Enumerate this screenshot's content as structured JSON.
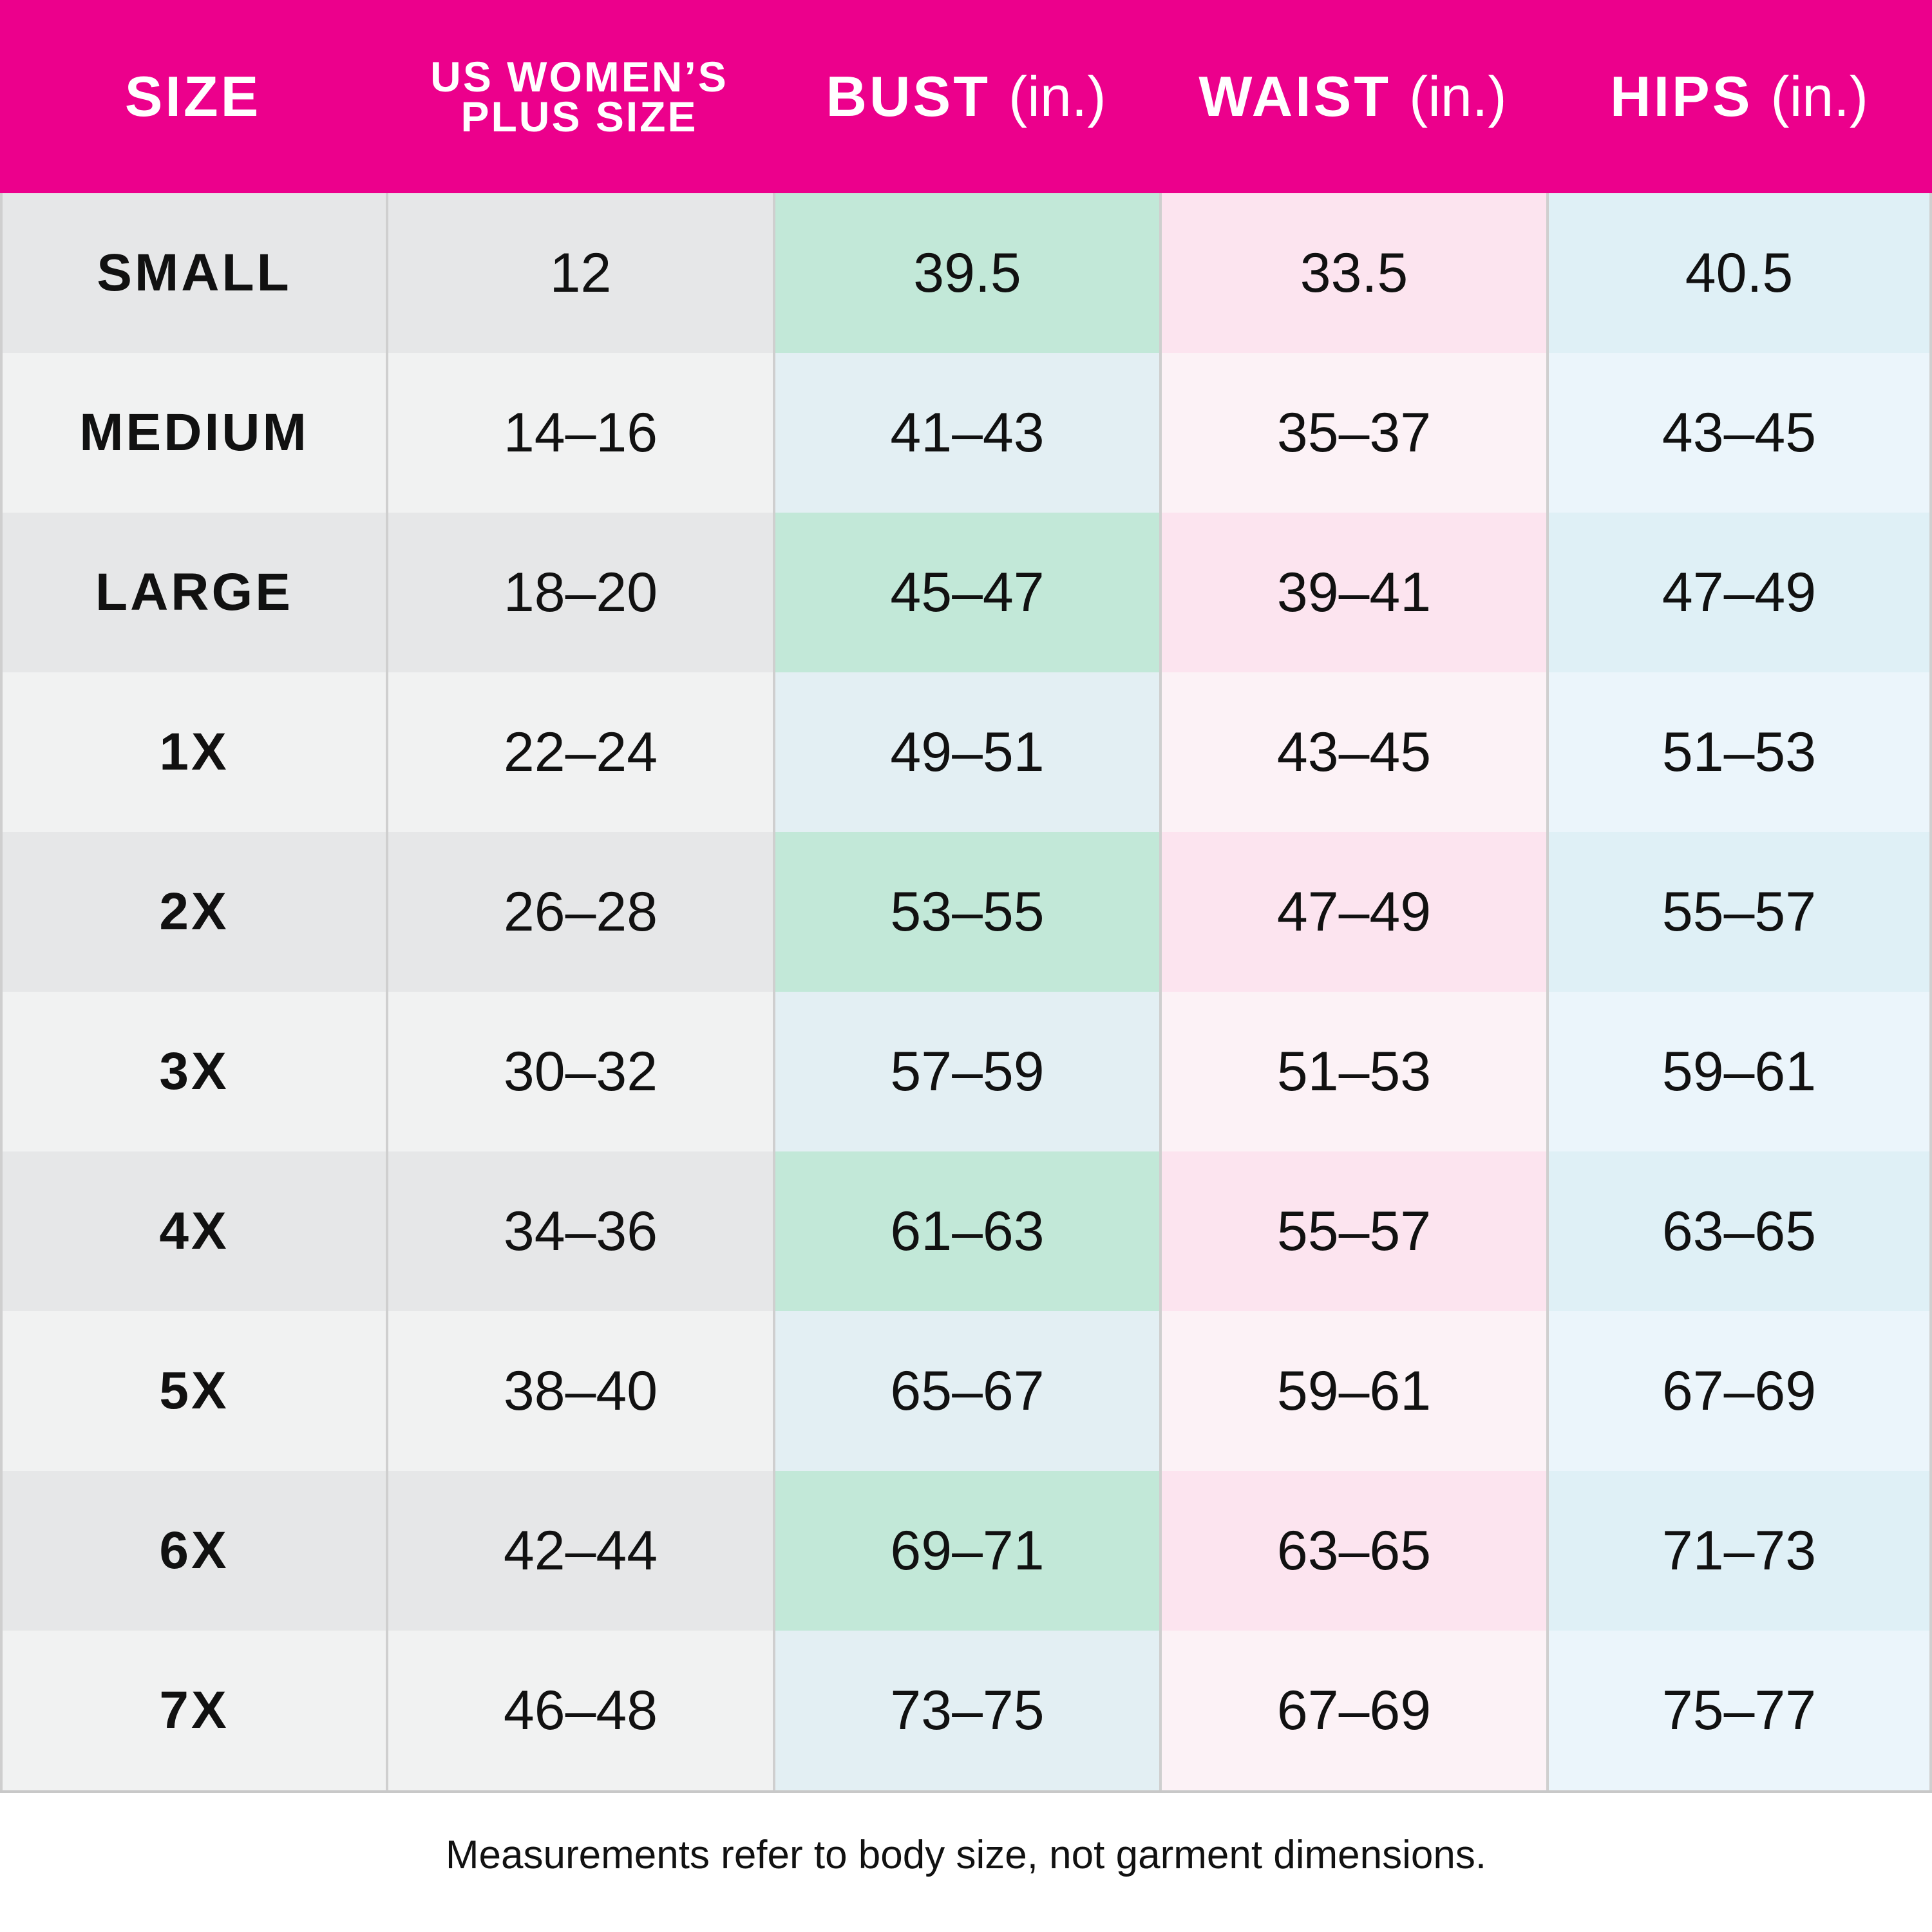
{
  "header": [
    {
      "label": "SIZE"
    },
    {
      "lines": [
        "US WOMEN’S",
        "PLUS SIZE"
      ]
    },
    {
      "label": "BUST",
      "unit": "(in.)"
    },
    {
      "label": "WAIST",
      "unit": "(in.)"
    },
    {
      "label": "HIPS",
      "unit": "(in.)"
    }
  ],
  "table": {
    "rows": [
      [
        "SMALL",
        "12",
        "39.5",
        "33.5",
        "40.5"
      ],
      [
        "MEDIUM",
        "14–16",
        "41–43",
        "35–37",
        "43–45"
      ],
      [
        "LARGE",
        "18–20",
        "45–47",
        "39–41",
        "47–49"
      ],
      [
        "1X",
        "22–24",
        "49–51",
        "43–45",
        "51–53"
      ],
      [
        "2X",
        "26–28",
        "53–55",
        "47–49",
        "55–57"
      ],
      [
        "3X",
        "30–32",
        "57–59",
        "51–53",
        "59–61"
      ],
      [
        "4X",
        "34–36",
        "61–63",
        "55–57",
        "63–65"
      ],
      [
        "5X",
        "38–40",
        "65–67",
        "59–61",
        "67–69"
      ],
      [
        "6X",
        "42–44",
        "69–71",
        "63–65",
        "71–73"
      ],
      [
        "7X",
        "46–48",
        "73–75",
        "67–69",
        "75–77"
      ]
    ]
  },
  "footer": "Measurements refer to body size, not garment dimensions."
}
